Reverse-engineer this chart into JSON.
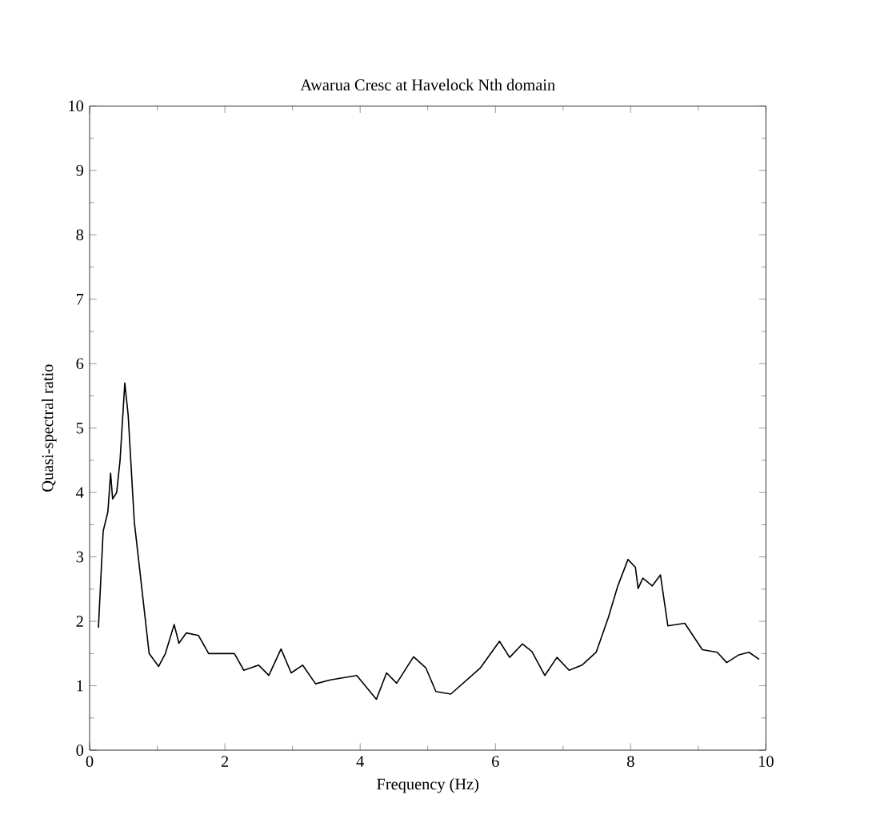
{
  "chart_data": {
    "type": "line",
    "title": "Awarua Cresc at Havelock Nth domain",
    "xlabel": "Frequency (Hz)",
    "ylabel": "Quasi-spectral ratio",
    "xlim": [
      0,
      10
    ],
    "ylim": [
      0,
      10
    ],
    "xticks": [
      0,
      2,
      4,
      6,
      8,
      10
    ],
    "yticks": [
      0,
      1,
      2,
      3,
      4,
      5,
      6,
      7,
      8,
      9,
      10
    ],
    "grid": false,
    "marker": "none",
    "line_style": "solid",
    "series": [
      {
        "color": "#000000",
        "x": [
          0.13,
          0.2,
          0.27,
          0.31,
          0.34,
          0.4,
          0.45,
          0.52,
          0.57,
          0.66,
          0.73,
          0.88,
          1.02,
          1.12,
          1.25,
          1.32,
          1.43,
          1.61,
          1.76,
          2.14,
          2.28,
          2.5,
          2.65,
          2.83,
          2.98,
          3.15,
          3.34,
          3.56,
          3.95,
          4.24,
          4.39,
          4.54,
          4.79,
          4.97,
          5.12,
          5.34,
          5.78,
          6.06,
          6.21,
          6.4,
          6.54,
          6.73,
          6.91,
          7.09,
          7.28,
          7.49,
          7.67,
          7.81,
          7.96,
          8.07,
          8.11,
          8.18,
          8.32,
          8.44,
          8.55,
          8.8,
          9.06,
          9.28,
          9.42,
          9.6,
          9.75,
          9.9
        ],
        "values": [
          1.9,
          3.4,
          3.7,
          4.3,
          3.9,
          4.0,
          4.5,
          5.7,
          5.2,
          3.55,
          2.9,
          1.5,
          1.3,
          1.5,
          1.95,
          1.66,
          1.82,
          1.78,
          1.5,
          1.5,
          1.24,
          1.32,
          1.16,
          1.57,
          1.2,
          1.32,
          1.03,
          1.09,
          1.16,
          0.79,
          1.2,
          1.04,
          1.45,
          1.28,
          0.91,
          0.87,
          1.28,
          1.69,
          1.44,
          1.65,
          1.53,
          1.16,
          1.44,
          1.24,
          1.32,
          1.52,
          2.06,
          2.55,
          2.96,
          2.84,
          2.51,
          2.67,
          2.55,
          2.72,
          1.93,
          1.97,
          1.56,
          1.52,
          1.36,
          1.48,
          1.52,
          1.41
        ]
      }
    ]
  }
}
